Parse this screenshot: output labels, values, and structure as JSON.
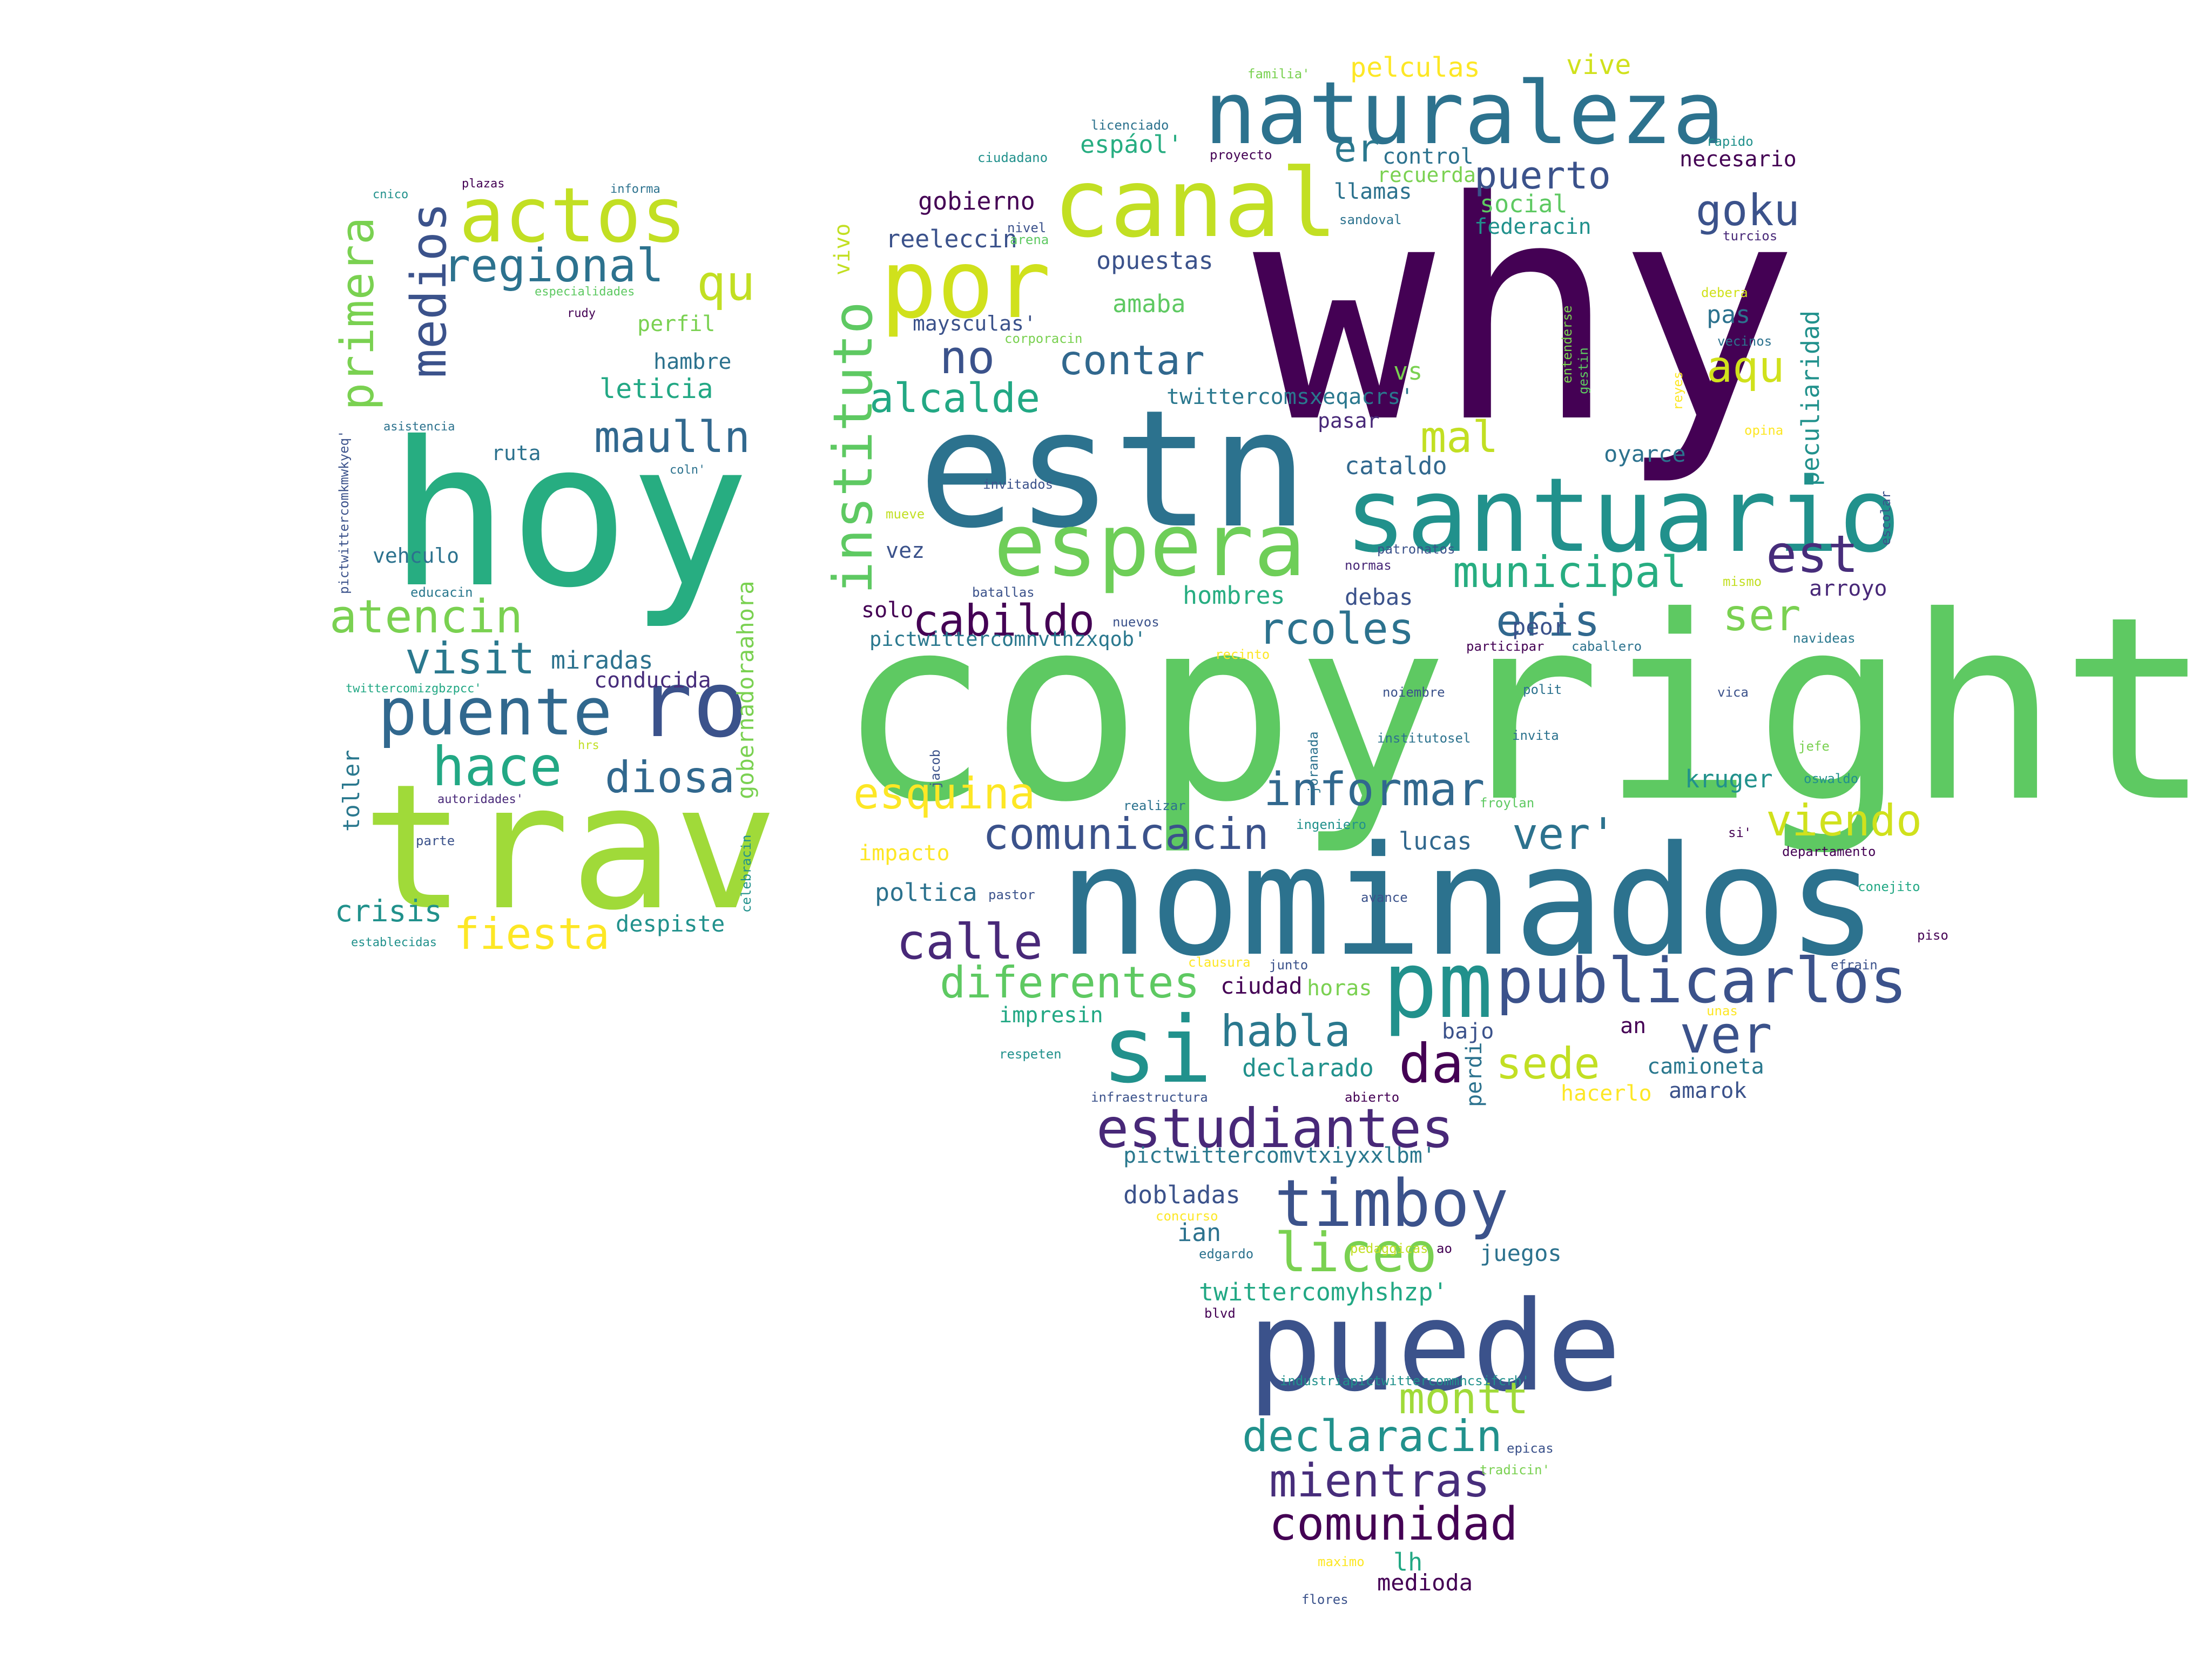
{
  "words": [
    {
      "text": "why",
      "color": "#440154"
    },
    {
      "text": "copyright",
      "color": "#5ec962"
    },
    {
      "text": "nominados",
      "color": "#2c728e"
    },
    {
      "text": "estn",
      "color": "#2c728e"
    },
    {
      "text": "hoy",
      "color": "#27ad81"
    },
    {
      "text": "trav",
      "color": "#a0da39"
    },
    {
      "text": "puede",
      "color": "#3b528b"
    },
    {
      "text": "santuario",
      "color": "#21918c"
    },
    {
      "text": "naturaleza",
      "color": "#2c728e"
    },
    {
      "text": "canal",
      "color": "#c2df23"
    },
    {
      "text": "por",
      "color": "#d0e11c"
    },
    {
      "text": "si",
      "color": "#21918c"
    },
    {
      "text": "pm",
      "color": "#21918c"
    },
    {
      "text": "espera",
      "color": "#6ece58"
    },
    {
      "text": "ro",
      "color": "#3b528b"
    },
    {
      "text": "actos",
      "color": "#c2df23"
    },
    {
      "text": "puente",
      "color": "#31688e"
    },
    {
      "text": "publicarlos",
      "color": "#3b528b"
    },
    {
      "text": "timboy",
      "color": "#3b528b"
    },
    {
      "text": "estudiantes",
      "color": "#482878"
    },
    {
      "text": "liceo",
      "color": "#7ad151"
    },
    {
      "text": "instituto",
      "color": "#5ec962"
    },
    {
      "text": "comunidad",
      "color": "#440154"
    },
    {
      "text": "mientras",
      "color": "#472d7b"
    },
    {
      "text": "declaracin",
      "color": "#21918c"
    },
    {
      "text": "montt",
      "color": "#a0da39"
    },
    {
      "text": "medios",
      "color": "#3b528b"
    },
    {
      "text": "primera",
      "color": "#7ad151"
    },
    {
      "text": "regional",
      "color": "#2c728e"
    },
    {
      "text": "qu",
      "color": "#c2df23"
    },
    {
      "text": "maulln",
      "color": "#31688e"
    },
    {
      "text": "atencin",
      "color": "#7ad151"
    },
    {
      "text": "visit",
      "color": "#2a788e"
    },
    {
      "text": "hace",
      "color": "#22a884"
    },
    {
      "text": "diosa",
      "color": "#31688e"
    },
    {
      "text": "fiesta",
      "color": "#fde725"
    },
    {
      "text": "crisis",
      "color": "#21918c"
    },
    {
      "text": "cabildo",
      "color": "#440154"
    },
    {
      "text": "rcoles",
      "color": "#2c728e"
    },
    {
      "text": "eris",
      "color": "#31688e"
    },
    {
      "text": "ser",
      "color": "#7ad151"
    },
    {
      "text": "est",
      "color": "#472d7b"
    },
    {
      "text": "municipal",
      "color": "#27ad81"
    },
    {
      "text": "informar",
      "color": "#31688e"
    },
    {
      "text": "comunicacin",
      "color": "#3b528b"
    },
    {
      "text": "viendo",
      "color": "#d0e11c"
    },
    {
      "text": "esquina",
      "color": "#fde725"
    },
    {
      "text": "ver'",
      "color": "#2c728e"
    },
    {
      "text": "ver",
      "color": "#3b528b"
    },
    {
      "text": "calle",
      "color": "#482878"
    },
    {
      "text": "diferentes",
      "color": "#5ec962"
    },
    {
      "text": "habla",
      "color": "#2a788e"
    },
    {
      "text": "da",
      "color": "#440154"
    },
    {
      "text": "sede",
      "color": "#c2df23"
    },
    {
      "text": "alcalde",
      "color": "#22a884"
    },
    {
      "text": "contar",
      "color": "#31688e"
    },
    {
      "text": "no",
      "color": "#3b528b"
    },
    {
      "text": "aqu",
      "color": "#d0e11c"
    },
    {
      "text": "mal",
      "color": "#c2df23"
    },
    {
      "text": "puerto",
      "color": "#3b528b"
    },
    {
      "text": "goku",
      "color": "#3b528b"
    },
    {
      "text": "er",
      "color": "#2a788e"
    },
    {
      "text": "pelculas",
      "color": "#fde725"
    },
    {
      "text": "vive",
      "color": "#d0e11c"
    },
    {
      "text": "gobierno",
      "color": "#440154"
    },
    {
      "text": "reeleccin",
      "color": "#3b528b"
    },
    {
      "text": "opuestas",
      "color": "#3b528b"
    },
    {
      "text": "amaba",
      "color": "#5ec962"
    },
    {
      "text": "maysculas'",
      "color": "#3b528b"
    },
    {
      "text": "twittercomsxeqacrs'",
      "color": "#2a788e"
    },
    {
      "text": "cataldo",
      "color": "#31688e"
    },
    {
      "text": "oyarce",
      "color": "#2c728e"
    },
    {
      "text": "peculiaridad",
      "color": "#21918c"
    },
    {
      "text": "arroyo",
      "color": "#482878"
    },
    {
      "text": "hombres",
      "color": "#27ad81"
    },
    {
      "text": "debas",
      "color": "#3b528b"
    },
    {
      "text": "peor",
      "color": "#3b528b"
    },
    {
      "text": "kruger",
      "color": "#21918c"
    },
    {
      "text": "pictwittercomnvthzxqob'",
      "color": "#2a788e"
    },
    {
      "text": "espáol'",
      "color": "#27ad81"
    },
    {
      "text": "social",
      "color": "#5ec962"
    },
    {
      "text": "federacin",
      "color": "#21918c"
    },
    {
      "text": "llamas",
      "color": "#2c728e"
    },
    {
      "text": "control",
      "color": "#2c728e"
    },
    {
      "text": "recuerda",
      "color": "#7ad151"
    },
    {
      "text": "necesario",
      "color": "#440154"
    },
    {
      "text": "pas",
      "color": "#2c728e"
    },
    {
      "text": "vs",
      "color": "#7ad151"
    },
    {
      "text": "pasar",
      "color": "#482878"
    },
    {
      "text": "vivo",
      "color": "#c2df23"
    },
    {
      "text": "solo",
      "color": "#440154"
    },
    {
      "text": "vez",
      "color": "#3b528b"
    },
    {
      "text": "impacto",
      "color": "#fde725"
    },
    {
      "text": "poltica",
      "color": "#2c728e"
    },
    {
      "text": "lucas",
      "color": "#31688e"
    },
    {
      "text": "ciudad",
      "color": "#440154"
    },
    {
      "text": "horas",
      "color": "#7ad151"
    },
    {
      "text": "impresin",
      "color": "#22a884"
    },
    {
      "text": "declarado",
      "color": "#21918c"
    },
    {
      "text": "bajo",
      "color": "#3b528b"
    },
    {
      "text": "perdi",
      "color": "#2c728e"
    },
    {
      "text": "an",
      "color": "#440154"
    },
    {
      "text": "camioneta",
      "color": "#2a788e"
    },
    {
      "text": "amarok",
      "color": "#3b528b"
    },
    {
      "text": "hacerlo",
      "color": "#fde725"
    },
    {
      "text": "pictwittercomvtxiyxxlbm'",
      "color": "#2a788e"
    },
    {
      "text": "dobladas",
      "color": "#3b528b"
    },
    {
      "text": "ian",
      "color": "#2c728e"
    },
    {
      "text": "juegos",
      "color": "#2c728e"
    },
    {
      "text": "twittercomyhshzp'",
      "color": "#22a884"
    },
    {
      "text": "medioda",
      "color": "#440154"
    },
    {
      "text": "lh",
      "color": "#22a884"
    },
    {
      "text": "miradas",
      "color": "#2c728e"
    },
    {
      "text": "conducida",
      "color": "#472d7b"
    },
    {
      "text": "leticia",
      "color": "#22a884"
    },
    {
      "text": "hambre",
      "color": "#2c728e"
    },
    {
      "text": "perfil",
      "color": "#7ad151"
    },
    {
      "text": "ruta",
      "color": "#2c728e"
    },
    {
      "text": "despiste",
      "color": "#21918c"
    },
    {
      "text": "toller",
      "color": "#2a788e"
    },
    {
      "text": "gobernadoraahora",
      "color": "#7ad151"
    },
    {
      "text": "vehculo",
      "color": "#2c728e"
    },
    {
      "text": "plazas",
      "color": "#440154"
    },
    {
      "text": "cnico",
      "color": "#21918c"
    },
    {
      "text": "informa",
      "color": "#2c728e"
    },
    {
      "text": "especialidades",
      "color": "#5ec962"
    },
    {
      "text": "rudy",
      "color": "#440154"
    },
    {
      "text": "asistencia",
      "color": "#2c728e"
    },
    {
      "text": "pictwittercomkmwkyeq'",
      "color": "#3b528b"
    },
    {
      "text": "coln'",
      "color": "#2c728e"
    },
    {
      "text": "educacin",
      "color": "#2a788e"
    },
    {
      "text": "twittercomizgbzpcc'",
      "color": "#22a884"
    },
    {
      "text": "hrs",
      "color": "#c2df23"
    },
    {
      "text": "autoridades'",
      "color": "#482878"
    },
    {
      "text": "parte",
      "color": "#3b528b"
    },
    {
      "text": "celebracin",
      "color": "#21918c"
    },
    {
      "text": "establecidas",
      "color": "#21918c"
    },
    {
      "text": "familia'",
      "color": "#7ad151"
    },
    {
      "text": "licenciado",
      "color": "#2c728e"
    },
    {
      "text": "ciudadano",
      "color": "#21918c"
    },
    {
      "text": "proyecto",
      "color": "#440154"
    },
    {
      "text": "rapido",
      "color": "#21918c"
    },
    {
      "text": "nivel",
      "color": "#3b528b"
    },
    {
      "text": "arena",
      "color": "#5ec962"
    },
    {
      "text": "sandoval",
      "color": "#2c728e"
    },
    {
      "text": "turcios",
      "color": "#482878"
    },
    {
      "text": "debera",
      "color": "#d0e11c"
    },
    {
      "text": "vecinos",
      "color": "#2c728e"
    },
    {
      "text": "corporacin",
      "color": "#7ad151"
    },
    {
      "text": "entenderse",
      "color": "#7ad151"
    },
    {
      "text": "gestin",
      "color": "#5ec962"
    },
    {
      "text": "reyes",
      "color": "#fde725"
    },
    {
      "text": "opina",
      "color": "#fde725"
    },
    {
      "text": "escolar",
      "color": "#3b528b"
    },
    {
      "text": "mueve",
      "color": "#c2df23"
    },
    {
      "text": "invitados",
      "color": "#3b528b"
    },
    {
      "text": "patronatos",
      "color": "#3b528b"
    },
    {
      "text": "normas",
      "color": "#482878"
    },
    {
      "text": "mismo",
      "color": "#c2df23"
    },
    {
      "text": "batallas",
      "color": "#3b528b"
    },
    {
      "text": "nuevos",
      "color": "#3b528b"
    },
    {
      "text": "recinto",
      "color": "#fde725"
    },
    {
      "text": "participar",
      "color": "#440154"
    },
    {
      "text": "caballero",
      "color": "#2c728e"
    },
    {
      "text": "navideas",
      "color": "#2a788e"
    },
    {
      "text": "noiembre",
      "color": "#3b528b"
    },
    {
      "text": "polit",
      "color": "#2c728e"
    },
    {
      "text": "vica",
      "color": "#3b528b"
    },
    {
      "text": "jacob",
      "color": "#3b528b"
    },
    {
      "text": "joranada",
      "color": "#2c728e"
    },
    {
      "text": "institutosel",
      "color": "#2c728e"
    },
    {
      "text": "invita",
      "color": "#2c728e"
    },
    {
      "text": "jefe",
      "color": "#7ad151"
    },
    {
      "text": "oswaldo",
      "color": "#21918c"
    },
    {
      "text": "realizar",
      "color": "#2c728e"
    },
    {
      "text": "ingeniero",
      "color": "#21918c"
    },
    {
      "text": "froylan",
      "color": "#5ec962"
    },
    {
      "text": "avance",
      "color": "#3b528b"
    },
    {
      "text": "si'",
      "color": "#440154"
    },
    {
      "text": "departamento",
      "color": "#440154"
    },
    {
      "text": "pastor",
      "color": "#3b528b"
    },
    {
      "text": "conejito",
      "color": "#22a884"
    },
    {
      "text": "piso",
      "color": "#440154"
    },
    {
      "text": "clausura",
      "color": "#fde725"
    },
    {
      "text": "junto",
      "color": "#3b528b"
    },
    {
      "text": "efrain",
      "color": "#3b528b"
    },
    {
      "text": "unas",
      "color": "#fde725"
    },
    {
      "text": "respeten",
      "color": "#21918c"
    },
    {
      "text": "infraestructura",
      "color": "#3b528b"
    },
    {
      "text": "abierto",
      "color": "#440154"
    },
    {
      "text": "concurso",
      "color": "#fde725"
    },
    {
      "text": "edgardo",
      "color": "#2c728e"
    },
    {
      "text": "pedaggicas",
      "color": "#c2df23"
    },
    {
      "text": "ao",
      "color": "#440154"
    },
    {
      "text": "blvd",
      "color": "#440154"
    },
    {
      "text": "industriapictwittercommncsifcrh'",
      "color": "#21918c"
    },
    {
      "text": "epicas",
      "color": "#3b528b"
    },
    {
      "text": "tradicin'",
      "color": "#7ad151"
    },
    {
      "text": "maximo",
      "color": "#fde725"
    },
    {
      "text": "flores",
      "color": "#3b528b"
    }
  ]
}
